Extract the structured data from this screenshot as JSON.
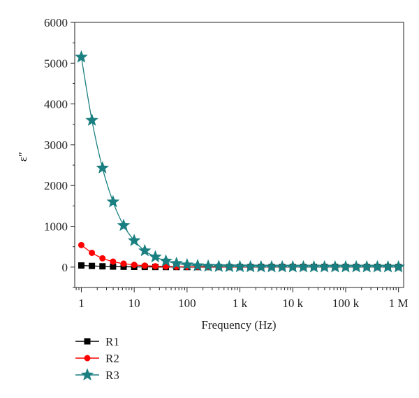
{
  "chart_data": {
    "type": "line",
    "title": "",
    "xlabel": "Frequency (Hz)",
    "ylabel": "ε″",
    "xscale": "log",
    "xlim": [
      0.75,
      1250000
    ],
    "ylim": [
      -500,
      6000
    ],
    "grid": false,
    "legend_position": "below-left",
    "x_ticks": [
      {
        "value": 1,
        "label": "1"
      },
      {
        "value": 10,
        "label": "10"
      },
      {
        "value": 100,
        "label": "100"
      },
      {
        "value": 1000,
        "label": "1 k"
      },
      {
        "value": 10000,
        "label": "10 k"
      },
      {
        "value": 100000,
        "label": "100 k"
      },
      {
        "value": 1000000,
        "label": "1 M"
      }
    ],
    "y_ticks": [
      {
        "value": 0,
        "label": "0"
      },
      {
        "value": 1000,
        "label": "1000"
      },
      {
        "value": 2000,
        "label": "2000"
      },
      {
        "value": 3000,
        "label": "3000"
      },
      {
        "value": 4000,
        "label": "4000"
      },
      {
        "value": 5000,
        "label": "5000"
      },
      {
        "value": 6000,
        "label": "6000"
      }
    ],
    "x": [
      1,
      1.585,
      2.512,
      3.981,
      6.31,
      10,
      15.85,
      25.12,
      39.81,
      63.1,
      100,
      158.5,
      251.2,
      398.1,
      631,
      1000,
      1585,
      2512,
      3981,
      6310,
      10000,
      15850,
      25120,
      39810,
      63100,
      100000,
      158500,
      251200,
      398100,
      631000,
      1000000
    ],
    "series": [
      {
        "name": "R1",
        "color": "#000000",
        "marker": "square",
        "values": [
          40,
          28,
          19,
          13,
          9,
          6,
          4,
          3,
          2,
          2,
          1,
          1,
          1,
          1,
          1,
          1,
          1,
          1,
          1,
          1,
          1,
          1,
          1,
          1,
          1,
          1,
          1,
          1,
          1,
          1,
          1
        ]
      },
      {
        "name": "R2",
        "color": "#ff0000",
        "marker": "circle",
        "values": [
          540,
          350,
          215,
          135,
          85,
          55,
          35,
          22,
          15,
          10,
          7,
          5,
          4,
          3,
          3,
          2,
          2,
          2,
          2,
          2,
          2,
          2,
          2,
          2,
          2,
          2,
          2,
          2,
          2,
          2,
          2
        ]
      },
      {
        "name": "R3",
        "color": "#1a7f80",
        "marker": "star",
        "values": [
          5150,
          3600,
          2430,
          1600,
          1020,
          650,
          400,
          250,
          150,
          90,
          55,
          35,
          22,
          15,
          10,
          8,
          6,
          5,
          4,
          4,
          3,
          3,
          3,
          3,
          3,
          3,
          3,
          3,
          3,
          3,
          3
        ]
      }
    ]
  }
}
